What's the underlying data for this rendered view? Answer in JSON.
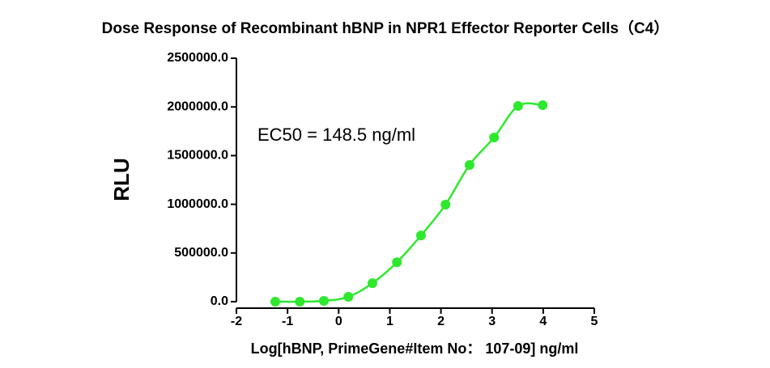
{
  "chart_data": {
    "type": "scatter",
    "title": "Dose Response of Recombinant hBNP in NPR1 Effector Reporter Cells（C4）",
    "x_label": "Log[hBNP, PrimeGene#Item No： 107-09] ng/ml",
    "y_label": "RLU",
    "annotation": "EC50 = 148.5 ng/ml",
    "x": [
      -1.24,
      -0.76,
      -0.29,
      0.19,
      0.66,
      1.14,
      1.61,
      2.09,
      2.56,
      3.04,
      3.51,
      3.99
    ],
    "values": [
      0,
      0,
      8000,
      50000,
      190000,
      405000,
      680000,
      997000,
      1404000,
      1686000,
      2010000,
      2018000
    ],
    "color": "#2ee82e",
    "xlim": [
      -2,
      5
    ],
    "xticks": [
      -2,
      -1,
      0,
      1,
      2,
      3,
      4,
      5
    ],
    "ylim": [
      0,
      2500000
    ],
    "yticks": [
      {
        "value": 0,
        "label": "0.0"
      },
      {
        "value": 500000,
        "label": "500000.0"
      },
      {
        "value": 1000000,
        "label": "1000000.0"
      },
      {
        "value": 1500000,
        "label": "1500000.0"
      },
      {
        "value": 2000000,
        "label": "2000000.0"
      },
      {
        "value": 2500000,
        "label": "2500000.0"
      }
    ]
  }
}
